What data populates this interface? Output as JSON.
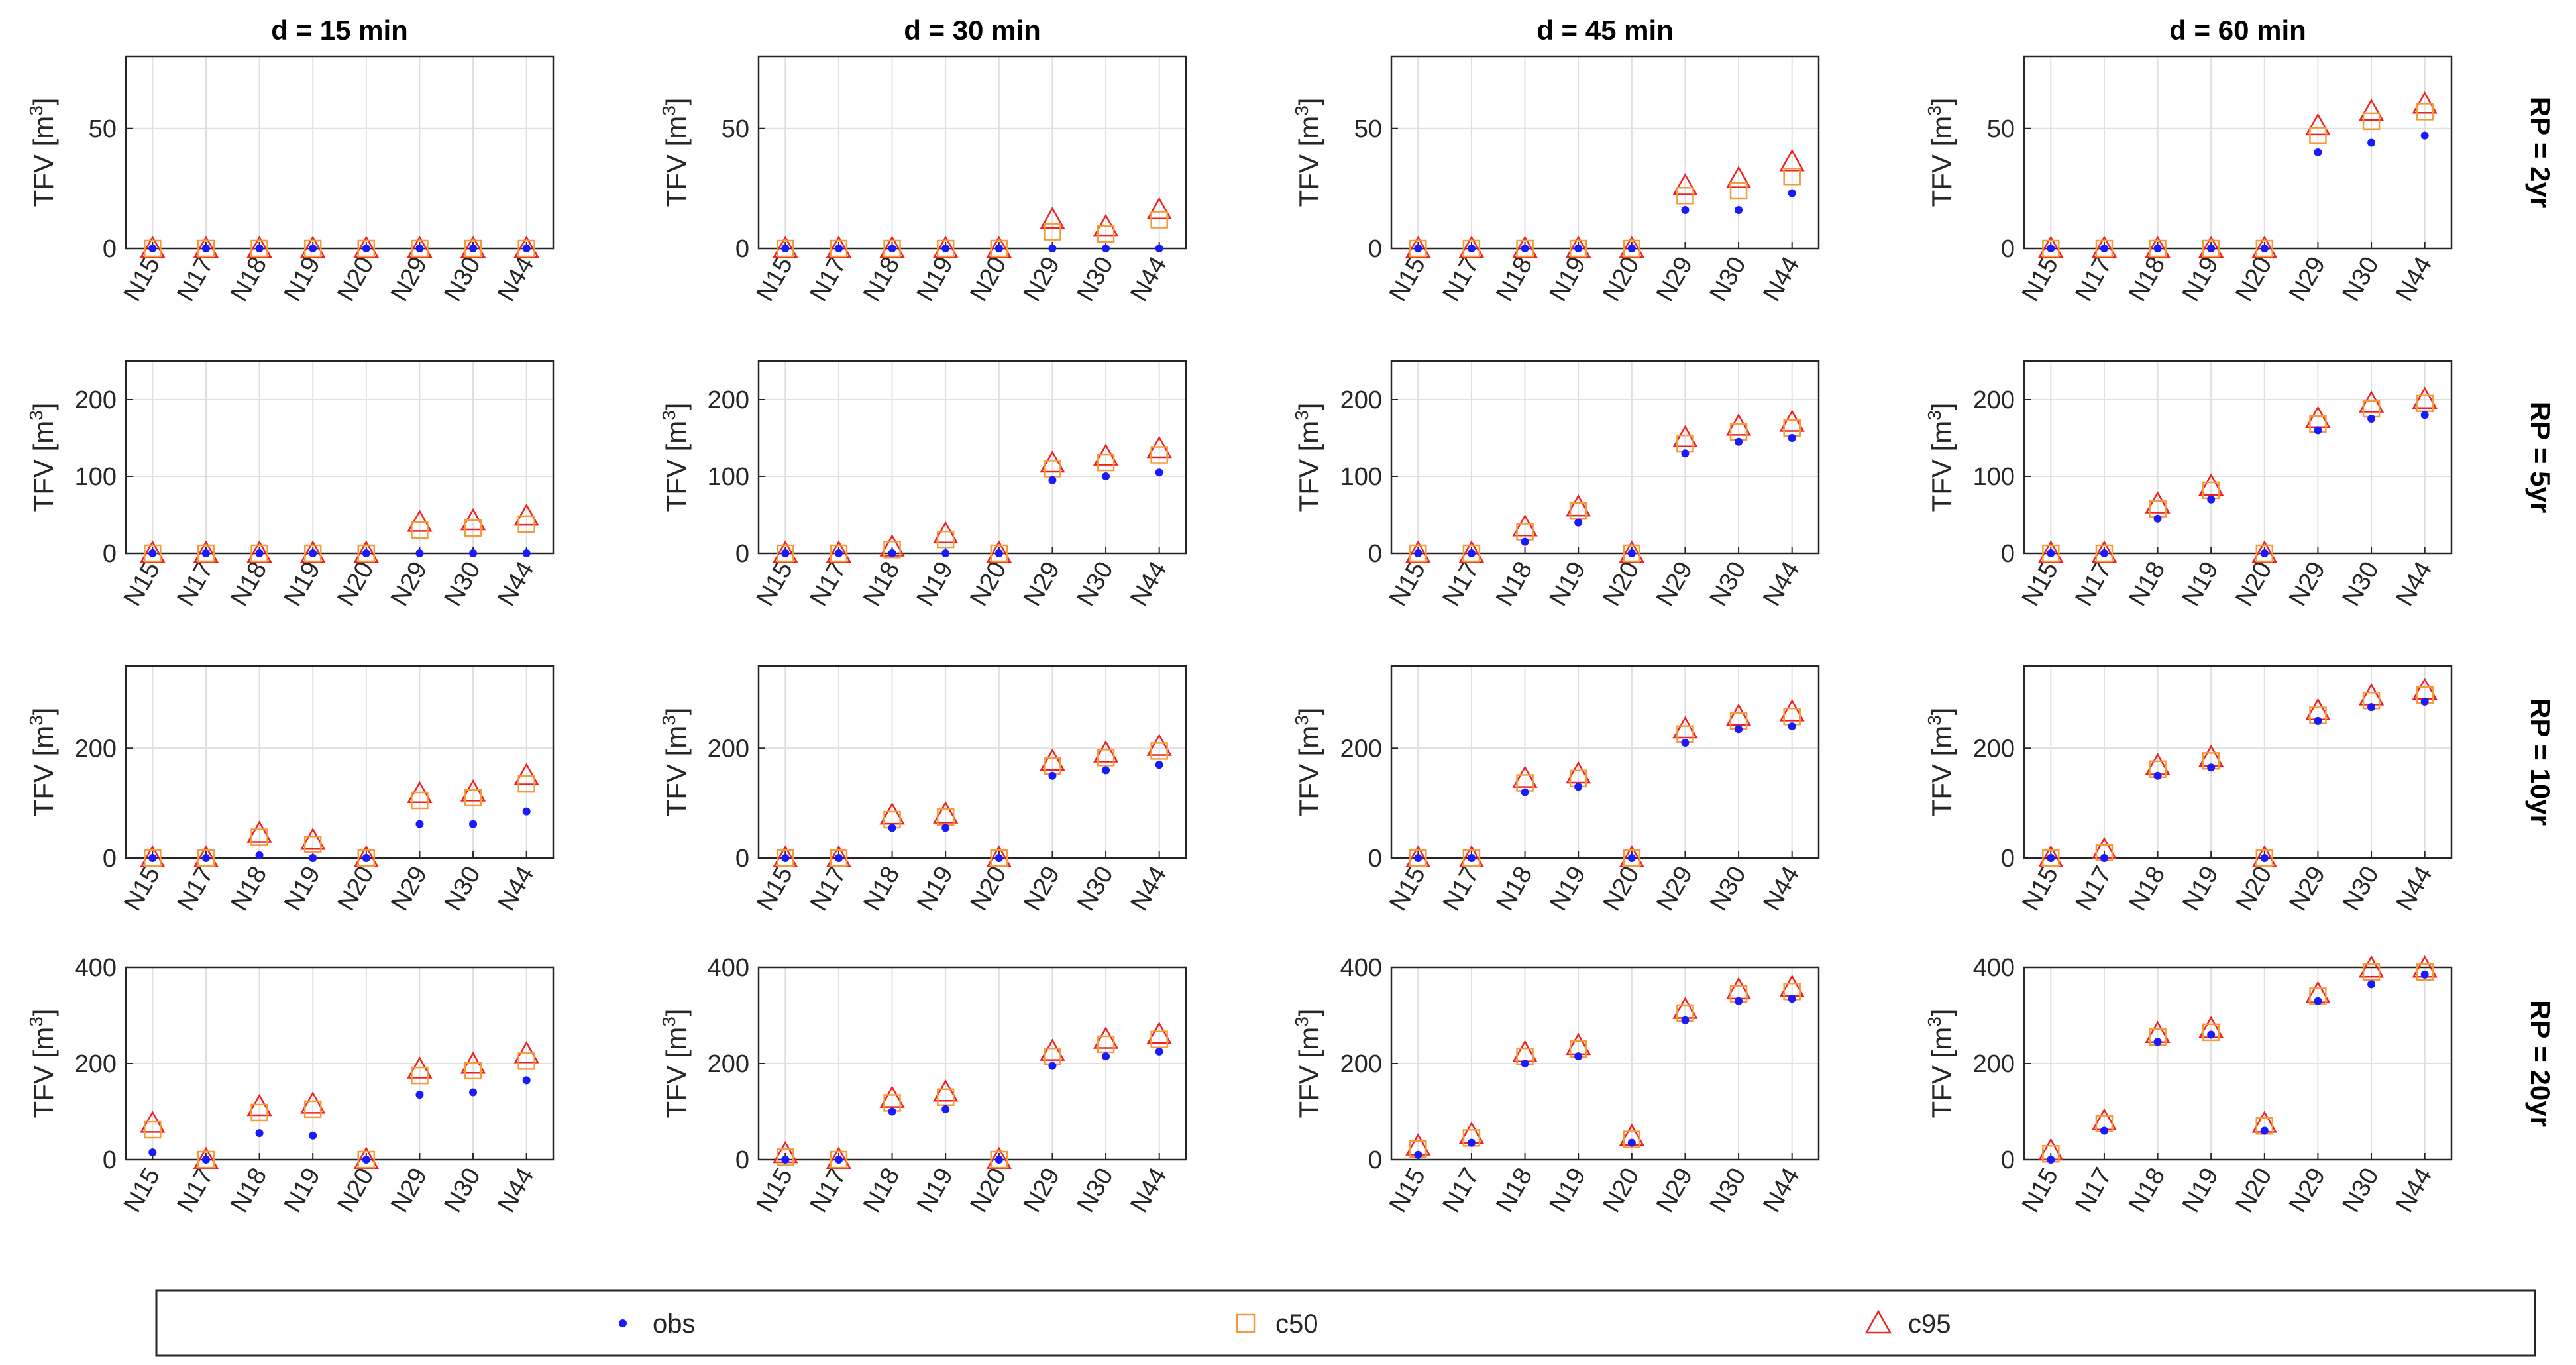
{
  "chart_data": {
    "type": "scatter",
    "grid": true,
    "columns": [
      "d = 15 min",
      "d = 30 min",
      "d = 45 min",
      "d = 60 min"
    ],
    "rows": [
      "RP = 2yr",
      "RP = 5yr",
      "RP = 10yr",
      "RP = 20yr"
    ],
    "categories": [
      "N15",
      "N17",
      "N18",
      "N19",
      "N20",
      "N29",
      "N30",
      "N44"
    ],
    "ylabel": "TFV [m",
    "ylabel_sup": "3",
    "ylabel_close": "]",
    "row_axes": [
      {
        "ylim": [
          0,
          80
        ],
        "yticks": [
          0,
          50
        ]
      },
      {
        "ylim": [
          0,
          250
        ],
        "yticks": [
          0,
          100,
          200
        ]
      },
      {
        "ylim": [
          0,
          350
        ],
        "yticks": [
          0,
          200
        ]
      },
      {
        "ylim": [
          0,
          400
        ],
        "yticks": [
          0,
          200,
          400
        ]
      }
    ],
    "legend": {
      "placement": "bottom",
      "entries": [
        {
          "key": "obs",
          "label": "obs",
          "marker": "dot",
          "color": "#1a1aff"
        },
        {
          "key": "c50",
          "label": "c50",
          "marker": "square",
          "color": "#f59a3a"
        },
        {
          "key": "c95",
          "label": "c95",
          "marker": "triangle",
          "color": "#ee2222"
        }
      ]
    },
    "panels": [
      {
        "row": 0,
        "col": 0,
        "obs": [
          0,
          0,
          0,
          0,
          0,
          0,
          0,
          0
        ],
        "c50": [
          0,
          0,
          0,
          0,
          0,
          0,
          0,
          0
        ],
        "c95": [
          0,
          0,
          0,
          0,
          0,
          0,
          0,
          0
        ]
      },
      {
        "row": 0,
        "col": 1,
        "obs": [
          0,
          0,
          0,
          0,
          0,
          0,
          0,
          0
        ],
        "c50": [
          0,
          0,
          0,
          0,
          0,
          7,
          6,
          12
        ],
        "c95": [
          0,
          0,
          0,
          0,
          0,
          12,
          9,
          16
        ]
      },
      {
        "row": 0,
        "col": 2,
        "obs": [
          0,
          0,
          0,
          0,
          0,
          16,
          16,
          23
        ],
        "c50": [
          0,
          0,
          0,
          0,
          0,
          22,
          24,
          30
        ],
        "c95": [
          0,
          0,
          0,
          0,
          0,
          26,
          29,
          36
        ]
      },
      {
        "row": 0,
        "col": 3,
        "obs": [
          0,
          0,
          0,
          0,
          0,
          40,
          44,
          47
        ],
        "c50": [
          0,
          0,
          0,
          0,
          0,
          47,
          53,
          57
        ],
        "c95": [
          0,
          0,
          0,
          0,
          0,
          51,
          57,
          60
        ]
      },
      {
        "row": 1,
        "col": 0,
        "obs": [
          0,
          0,
          0,
          0,
          0,
          0,
          0,
          0
        ],
        "c50": [
          0,
          0,
          0,
          0,
          0,
          30,
          33,
          38
        ],
        "c95": [
          0,
          0,
          0,
          0,
          0,
          40,
          42,
          48
        ]
      },
      {
        "row": 1,
        "col": 1,
        "obs": [
          0,
          0,
          0,
          0,
          0,
          95,
          100,
          105
        ],
        "c50": [
          0,
          0,
          5,
          18,
          0,
          110,
          118,
          128
        ],
        "c95": [
          0,
          0,
          8,
          25,
          0,
          117,
          126,
          136
        ]
      },
      {
        "row": 1,
        "col": 2,
        "obs": [
          0,
          0,
          15,
          40,
          0,
          130,
          145,
          150
        ],
        "c50": [
          0,
          0,
          28,
          55,
          0,
          143,
          158,
          163
        ],
        "c95": [
          0,
          0,
          34,
          60,
          0,
          150,
          165,
          170
        ]
      },
      {
        "row": 1,
        "col": 3,
        "obs": [
          0,
          0,
          45,
          70,
          0,
          160,
          175,
          180
        ],
        "c50": [
          0,
          0,
          58,
          82,
          0,
          168,
          188,
          195
        ],
        "c95": [
          0,
          0,
          64,
          87,
          0,
          175,
          195,
          200
        ]
      },
      {
        "row": 2,
        "col": 0,
        "obs": [
          0,
          0,
          5,
          0,
          0,
          62,
          62,
          85
        ],
        "c50": [
          0,
          0,
          38,
          25,
          0,
          105,
          110,
          135
        ],
        "c95": [
          0,
          0,
          45,
          32,
          0,
          117,
          120,
          150
        ]
      },
      {
        "row": 2,
        "col": 1,
        "obs": [
          0,
          0,
          55,
          55,
          0,
          150,
          160,
          170
        ],
        "c50": [
          0,
          0,
          70,
          75,
          0,
          168,
          183,
          195
        ],
        "c95": [
          0,
          0,
          78,
          80,
          0,
          176,
          191,
          203
        ]
      },
      {
        "row": 2,
        "col": 2,
        "obs": [
          0,
          0,
          120,
          130,
          0,
          210,
          235,
          240
        ],
        "c50": [
          0,
          0,
          137,
          145,
          0,
          226,
          250,
          258
        ],
        "c95": [
          0,
          0,
          145,
          153,
          0,
          235,
          258,
          266
        ]
      },
      {
        "row": 2,
        "col": 3,
        "obs": [
          0,
          0,
          150,
          165,
          0,
          250,
          275,
          285
        ],
        "c50": [
          0,
          10,
          162,
          177,
          0,
          260,
          287,
          297
        ],
        "c95": [
          0,
          15,
          168,
          183,
          0,
          268,
          295,
          305
        ]
      },
      {
        "row": 3,
        "col": 0,
        "obs": [
          15,
          0,
          55,
          50,
          0,
          135,
          140,
          165
        ],
        "c50": [
          62,
          0,
          98,
          105,
          0,
          175,
          185,
          205
        ],
        "c95": [
          75,
          0,
          110,
          115,
          0,
          188,
          198,
          220
        ]
      },
      {
        "row": 3,
        "col": 1,
        "obs": [
          0,
          0,
          100,
          105,
          0,
          195,
          215,
          225
        ],
        "c50": [
          5,
          0,
          118,
          130,
          0,
          215,
          240,
          250
        ],
        "c95": [
          12,
          0,
          127,
          140,
          0,
          225,
          250,
          260
        ]
      },
      {
        "row": 3,
        "col": 2,
        "obs": [
          10,
          35,
          200,
          215,
          35,
          290,
          330,
          335
        ],
        "c50": [
          22,
          45,
          215,
          230,
          42,
          305,
          345,
          350
        ],
        "c95": [
          28,
          52,
          222,
          237,
          48,
          312,
          353,
          358
        ]
      },
      {
        "row": 3,
        "col": 3,
        "obs": [
          0,
          60,
          245,
          260,
          60,
          330,
          365,
          385
        ],
        "c50": [
          12,
          75,
          255,
          265,
          70,
          340,
          390,
          390
        ],
        "c95": [
          18,
          80,
          262,
          272,
          75,
          345,
          398,
          398
        ]
      }
    ]
  }
}
